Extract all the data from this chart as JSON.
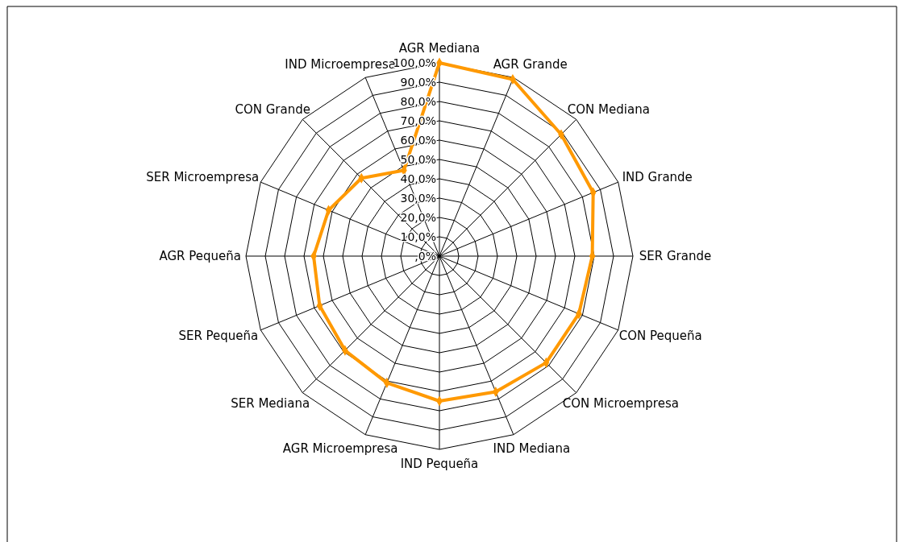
{
  "chart_data": {
    "type": "radar",
    "categories": [
      "AGR Mediana",
      "AGR Grande",
      "CON Mediana",
      "IND Grande",
      "SER Grande",
      "CON Pequeña",
      "CON Microempresa",
      "IND Mediana",
      "IND Pequeña",
      "AGR Microempresa",
      "SER Mediana",
      "SER Pequeña",
      "AGR Pequeña",
      "SER Microempresa",
      "CON Grande",
      "IND Microempresa"
    ],
    "series": [
      {
        "color": "#ff9900",
        "values": [
          100,
          99,
          89,
          86,
          79,
          78,
          78,
          76,
          75,
          71,
          69,
          67,
          65,
          62,
          57,
          48
        ]
      }
    ],
    "ylim": [
      0,
      100
    ],
    "yticks": [
      {
        "value": 0,
        "label": ",0%"
      },
      {
        "value": 10,
        "label": "10,0%"
      },
      {
        "value": 20,
        "label": "20,0%"
      },
      {
        "value": 30,
        "label": "30,0%"
      },
      {
        "value": 40,
        "label": "40,0%"
      },
      {
        "value": 50,
        "label": "50,0%"
      },
      {
        "value": 60,
        "label": "60,0%"
      },
      {
        "value": 70,
        "label": "70,0%"
      },
      {
        "value": 80,
        "label": "80,0%"
      },
      {
        "value": 90,
        "label": "90,0%"
      },
      {
        "value": 100,
        "label": "100,0%"
      }
    ],
    "marker": "diamond",
    "line_style": "solid",
    "grid": true
  }
}
